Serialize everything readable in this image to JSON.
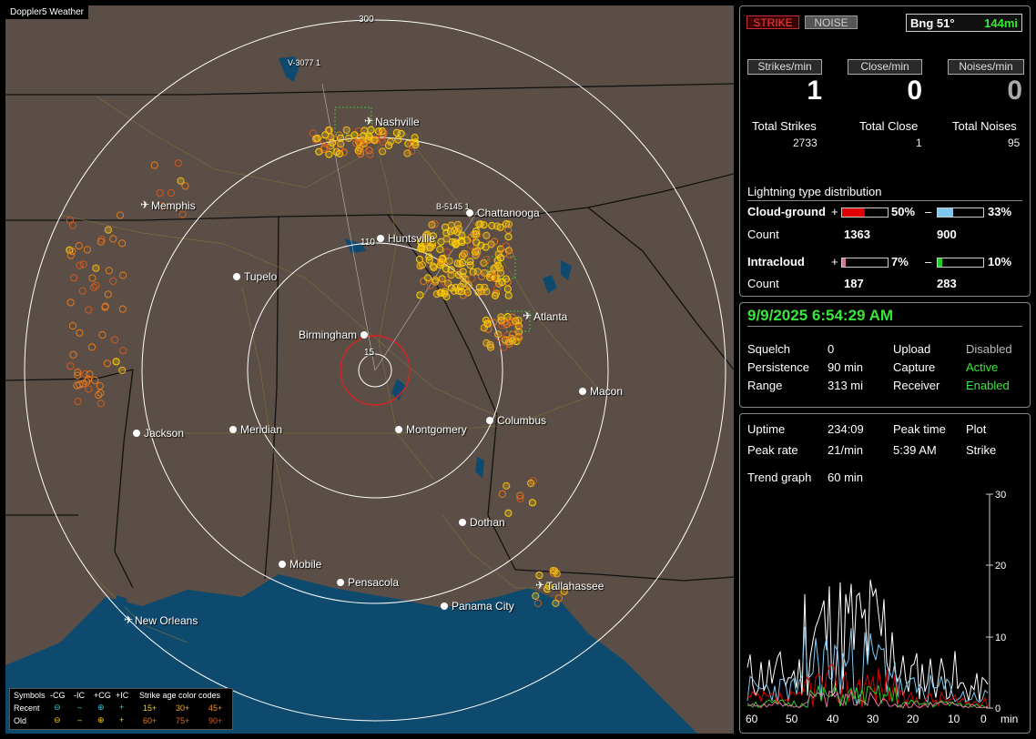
{
  "app": {
    "title": "Doppler5 Weather"
  },
  "colors": {
    "land": "#5a4e46",
    "water": "#0e4a6e",
    "ring": "#ffffff",
    "close_ring": "#e02020",
    "accent_green": "#39e639",
    "strike_recent": "#ffd000",
    "strike_old": "#e87a1a",
    "cg_pos_bar": "#e00000",
    "cg_neg_bar": "#7ec8f0",
    "ic_pos_bar": "#e070a0",
    "ic_neg_bar": "#20d020"
  },
  "map": {
    "range_labels": [
      "300",
      "110",
      "15"
    ],
    "station_labels": [
      "V-3077 1",
      "B-5145 1"
    ],
    "cities": [
      {
        "name": "Nashville",
        "icon": "airport-icon"
      },
      {
        "name": "Memphis",
        "icon": "airport-icon"
      },
      {
        "name": "Chattanooga",
        "icon": "city-dot"
      },
      {
        "name": "Huntsville",
        "icon": "city-dot"
      },
      {
        "name": "Tupelo",
        "icon": "city-dot"
      },
      {
        "name": "Atlanta",
        "icon": "airport-icon"
      },
      {
        "name": "Birmingham",
        "icon": "city-dot"
      },
      {
        "name": "Macon",
        "icon": "city-dot"
      },
      {
        "name": "Jackson",
        "icon": "city-dot"
      },
      {
        "name": "Meridian",
        "icon": "city-dot"
      },
      {
        "name": "Montgomery",
        "icon": "city-dot"
      },
      {
        "name": "Columbus",
        "icon": "city-dot"
      },
      {
        "name": "Dothan",
        "icon": "city-dot"
      },
      {
        "name": "Mobile",
        "icon": "city-dot"
      },
      {
        "name": "Pensacola",
        "icon": "city-dot"
      },
      {
        "name": "Tallahassee",
        "icon": "airport-icon"
      },
      {
        "name": "Panama City",
        "icon": "city-dot"
      },
      {
        "name": "New Orleans",
        "icon": "airport-icon"
      }
    ],
    "legend": {
      "symbols_label": "Symbols",
      "cols": [
        "-CG",
        "-IC",
        "+CG",
        "+IC"
      ],
      "age_title": "Strike age color codes",
      "recent_label": "Recent",
      "old_label": "Old",
      "recent_ages": [
        "15+",
        "30+",
        "45+"
      ],
      "old_ages": [
        "60+",
        "75+",
        "90+"
      ]
    }
  },
  "stats": {
    "strike_btn": "STRIKE",
    "noise_btn": "NOISE",
    "bearing": "Bng 51°",
    "distance": "144mi",
    "rate_labels": [
      "Strikes/min",
      "Close/min",
      "Noises/min"
    ],
    "rates": [
      "1",
      "0",
      "0"
    ],
    "total_labels": [
      "Total Strikes",
      "Total Close",
      "Total Noises"
    ],
    "totals": [
      "2733",
      "1",
      "95"
    ],
    "distribution_title": "Lightning type distribution",
    "cloud_ground": "Cloud-ground",
    "intracloud": "Intracloud",
    "count_label": "Count",
    "plus": "+",
    "minus": "–",
    "cg_pos_pct": "50%",
    "cg_pos_fill": 0.5,
    "cg_neg_pct": "33%",
    "cg_neg_fill": 0.33,
    "ic_pos_pct": "7%",
    "ic_pos_fill": 0.07,
    "ic_neg_pct": "10%",
    "ic_neg_fill": 0.1,
    "cg_pos_count": "1363",
    "cg_neg_count": "900",
    "ic_pos_count": "187",
    "ic_neg_count": "283"
  },
  "status": {
    "datetime": "9/9/2025 6:54:29 AM",
    "squelch_label": "Squelch",
    "squelch": "0",
    "persistence_label": "Persistence",
    "persistence": "90 min",
    "range_label": "Range",
    "range": "313 mi",
    "upload_label": "Upload",
    "upload": "Disabled",
    "capture_label": "Capture",
    "capture": "Active",
    "receiver_label": "Receiver",
    "receiver": "Enabled"
  },
  "trend": {
    "uptime_label": "Uptime",
    "uptime": "234:09",
    "peak_time_label": "Peak time",
    "peak_time": "5:39 AM",
    "plot_label": "Plot",
    "plot": "Strike",
    "peak_rate_label": "Peak rate",
    "peak_rate": "21/min",
    "trend_graph_label": "Trend graph",
    "trend_graph": "60 min",
    "y_ticks": [
      "30",
      "20",
      "10",
      "0"
    ],
    "x_ticks": [
      "60",
      "50",
      "40",
      "30",
      "20",
      "10",
      "0"
    ],
    "x_unit": "min"
  }
}
